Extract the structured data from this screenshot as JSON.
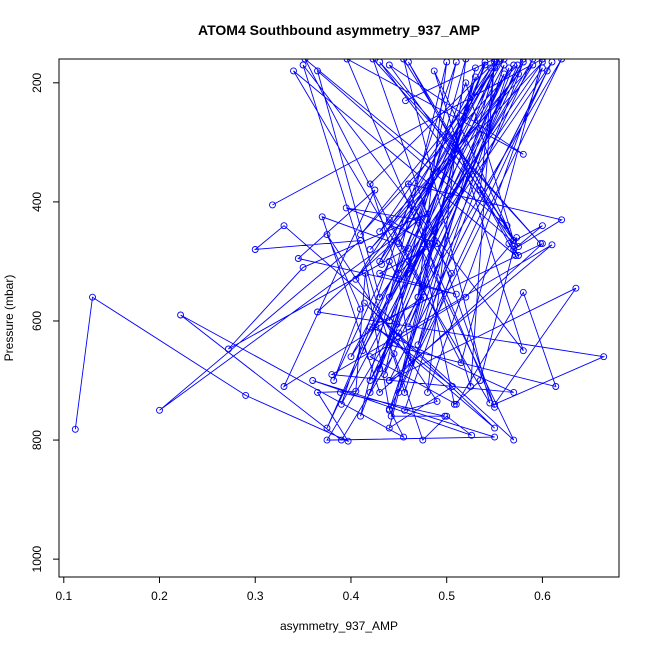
{
  "chart_data": {
    "type": "line",
    "title": "ATOM4 Southbound asymmetry_937_AMP",
    "xlabel": "asymmetry_937_AMP",
    "ylabel": "Pressure (mbar)",
    "xlim": [
      0.095,
      0.68
    ],
    "ylim": [
      1030,
      160
    ],
    "y_inverted": true,
    "x_ticks": [
      0.1,
      0.2,
      0.3,
      0.4,
      0.5,
      0.6
    ],
    "x_tick_labels": [
      "0.1",
      "0.2",
      "0.3",
      "0.4",
      "0.5",
      "0.6"
    ],
    "y_ticks": [
      200,
      400,
      600,
      800,
      1000
    ],
    "y_tick_labels": [
      "200",
      "400",
      "600",
      "800",
      "1000"
    ],
    "grid": false,
    "legend": "none",
    "series_color": "#0000ff",
    "marker": "open-circle",
    "series": [
      {
        "x": [
          0.318,
          0.6,
          0.515,
          0.352,
          0.563,
          0.44,
          0.58,
          0.396,
          0.55,
          0.423,
          0.598,
          0.43,
          0.57,
          0.46,
          0.572,
          0.34,
          0.545,
          0.455,
          0.575,
          0.365,
          0.43,
          0.6,
          0.42,
          0.575,
          0.405,
          0.555,
          0.375,
          0.54,
          0.44,
          0.565,
          0.456,
          0.35,
          0.58,
          0.487,
          0.57,
          0.52,
          0.44,
          0.59,
          0.43,
          0.546,
          0.432,
          0.552,
          0.45,
          0.56,
          0.41,
          0.574,
          0.435,
          0.51,
          0.39,
          0.58,
          0.412,
          0.56,
          0.42,
          0.54,
          0.43,
          0.57,
          0.46,
          0.59,
          0.46,
          0.61,
          0.44,
          0.605,
          0.44,
          0.56,
          0.4,
          0.6,
          0.48,
          0.52,
          0.43,
          0.53,
          0.47,
          0.5,
          0.41,
          0.55,
          0.47,
          0.58,
          0.42,
          0.62,
          0.45,
          0.53,
          0.442,
          0.498,
          0.389
        ],
        "y": [
          405,
          160,
          670,
          160,
          440,
          170,
          320,
          160,
          745,
          160,
          470,
          165,
          465,
          165,
          490,
          180,
          738,
          160,
          475,
          180,
          560,
          165,
          480,
          185,
          530,
          160,
          780,
          170,
          600,
          175,
          720,
          170,
          650,
          180,
          465,
          200,
          560,
          170,
          450,
          175,
          505,
          165,
          470,
          160,
          455,
          170,
          690,
          165,
          740,
          160,
          650,
          185,
          720,
          165,
          500,
          170,
          610,
          160,
          520,
          165,
          700,
          180,
          750,
          170,
          660,
          175,
          720,
          160,
          680,
          190,
          560,
          165,
          760,
          175,
          640,
          165,
          700,
          160,
          720,
          175,
          760,
          760,
          720
        ]
      },
      {
        "x": [
          0.112,
          0.13,
          0.29,
          0.397,
          0.365,
          0.405,
          0.415,
          0.44,
          0.455,
          0.222,
          0.39,
          0.445,
          0.475,
          0.5,
          0.526,
          0.36,
          0.55,
          0.375,
          0.448,
          0.33,
          0.3,
          0.41,
          0.2,
          0.48,
          0.35,
          0.272,
          0.46,
          0.37,
          0.43,
          0.6,
          0.42,
          0.57,
          0.38,
          0.61,
          0.44,
          0.635,
          0.55,
          0.664,
          0.365,
          0.47,
          0.395,
          0.49,
          0.43,
          0.51,
          0.345,
          0.425,
          0.33,
          0.476,
          0.44,
          0.506,
          0.426,
          0.55,
          0.414,
          0.57,
          0.474,
          0.508,
          0.535,
          0.573,
          0.52,
          0.42,
          0.51,
          0.58,
          0.614,
          0.44,
          0.45,
          0.463,
          0.45,
          0.44,
          0.382,
          0.41,
          0.375,
          0.49,
          0.456,
          0.505,
          0.485,
          0.47
        ],
        "y": [
          782,
          560,
          725,
          802,
          720,
          718,
          520,
          748,
          795,
          590,
          800,
          655,
          800,
          760,
          792,
          700,
          795,
          800,
          605,
          440,
          480,
          465,
          750,
          420,
          510,
          647,
          478,
          425,
          720,
          470,
          610,
          720,
          690,
          472,
          700,
          545,
          740,
          660,
          585,
          430,
          410,
          470,
          520,
          555,
          495,
          380,
          710,
          560,
          780,
          710,
          610,
          780,
          570,
          800,
          480,
          740,
          700,
          460,
          560,
          660,
          740,
          552,
          710,
          640,
          620,
          670,
          530,
          500,
          700,
          580,
          455,
          735,
          750,
          520,
          470,
          560
        ]
      },
      {
        "x": [
          0.457,
          0.55,
          0.525,
          0.46,
          0.62,
          0.57,
          0.6,
          0.565,
          0.575,
          0.535,
          0.55,
          0.42,
          0.45,
          0.48,
          0.44,
          0.475
        ],
        "y": [
          230,
          160,
          710,
          370,
          430,
          480,
          440,
          470,
          490,
          380,
          165,
          370,
          520,
          470,
          430,
          540
        ]
      }
    ]
  }
}
